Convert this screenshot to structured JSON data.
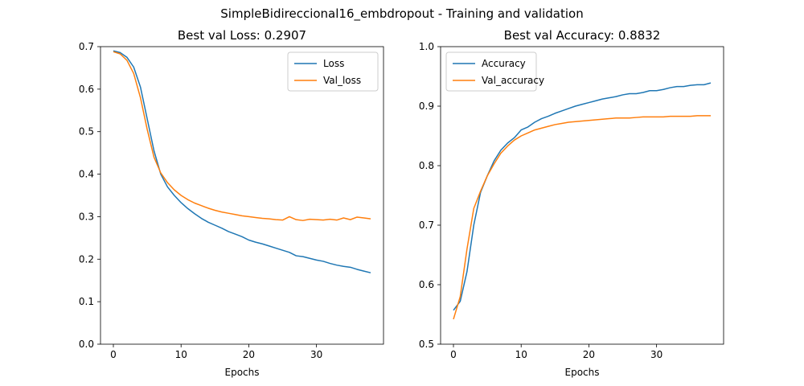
{
  "figure": {
    "suptitle": "SimpleBidireccional16_embdropout - Training and validation"
  },
  "chart_data": [
    {
      "type": "line",
      "title": "Best val Loss: 0.2907",
      "xlabel": "Epochs",
      "ylabel": "",
      "xlim": [
        -1.9,
        39.9
      ],
      "ylim": [
        0.0,
        0.7
      ],
      "xticks": [
        0,
        10,
        20,
        30
      ],
      "yticks": [
        0.0,
        0.1,
        0.2,
        0.3,
        0.4,
        0.5,
        0.6,
        0.7
      ],
      "ytick_decimals": 1,
      "grid": false,
      "legend_position": "upper-right",
      "x": [
        0,
        1,
        2,
        3,
        4,
        5,
        6,
        7,
        8,
        9,
        10,
        11,
        12,
        13,
        14,
        15,
        16,
        17,
        18,
        19,
        20,
        21,
        22,
        23,
        24,
        25,
        26,
        27,
        28,
        29,
        30,
        31,
        32,
        33,
        34,
        35,
        36,
        37,
        38
      ],
      "series": [
        {
          "name": "Loss",
          "color": "#1f77b4",
          "values": [
            0.69,
            0.686,
            0.675,
            0.652,
            0.605,
            0.53,
            0.455,
            0.4,
            0.37,
            0.35,
            0.333,
            0.319,
            0.307,
            0.296,
            0.287,
            0.28,
            0.273,
            0.265,
            0.259,
            0.253,
            0.245,
            0.24,
            0.236,
            0.231,
            0.226,
            0.221,
            0.216,
            0.208,
            0.206,
            0.202,
            0.198,
            0.195,
            0.19,
            0.186,
            0.183,
            0.181,
            0.176,
            0.172,
            0.168
          ]
        },
        {
          "name": "Val_loss",
          "color": "#ff7f0e",
          "values": [
            0.688,
            0.683,
            0.668,
            0.637,
            0.58,
            0.505,
            0.44,
            0.403,
            0.38,
            0.363,
            0.35,
            0.34,
            0.332,
            0.326,
            0.32,
            0.315,
            0.311,
            0.308,
            0.305,
            0.302,
            0.3,
            0.298,
            0.296,
            0.295,
            0.293,
            0.292,
            0.3,
            0.293,
            0.291,
            0.294,
            0.293,
            0.292,
            0.294,
            0.292,
            0.297,
            0.293,
            0.299,
            0.297,
            0.295
          ]
        }
      ]
    },
    {
      "type": "line",
      "title": "Best val Accuracy: 0.8832",
      "xlabel": "Epochs",
      "ylabel": "",
      "xlim": [
        -1.9,
        39.9
      ],
      "ylim": [
        0.5,
        1.0
      ],
      "xticks": [
        0,
        10,
        20,
        30
      ],
      "yticks": [
        0.5,
        0.6,
        0.7,
        0.8,
        0.9,
        1.0
      ],
      "ytick_decimals": 1,
      "grid": false,
      "legend_position": "upper-left",
      "x": [
        0,
        1,
        2,
        3,
        4,
        5,
        6,
        7,
        8,
        9,
        10,
        11,
        12,
        13,
        14,
        15,
        16,
        17,
        18,
        19,
        20,
        21,
        22,
        23,
        24,
        25,
        26,
        27,
        28,
        29,
        30,
        31,
        32,
        33,
        34,
        35,
        36,
        37,
        38
      ],
      "series": [
        {
          "name": "Accuracy",
          "color": "#1f77b4",
          "values": [
            0.557,
            0.572,
            0.622,
            0.7,
            0.755,
            0.783,
            0.808,
            0.826,
            0.838,
            0.847,
            0.86,
            0.865,
            0.873,
            0.879,
            0.883,
            0.888,
            0.892,
            0.896,
            0.9,
            0.903,
            0.906,
            0.909,
            0.912,
            0.914,
            0.916,
            0.919,
            0.921,
            0.921,
            0.923,
            0.926,
            0.926,
            0.928,
            0.931,
            0.933,
            0.933,
            0.935,
            0.936,
            0.936,
            0.939
          ]
        },
        {
          "name": "Val_accuracy",
          "color": "#ff7f0e",
          "values": [
            0.542,
            0.58,
            0.66,
            0.728,
            0.757,
            0.783,
            0.803,
            0.821,
            0.833,
            0.843,
            0.85,
            0.855,
            0.86,
            0.863,
            0.866,
            0.869,
            0.871,
            0.873,
            0.874,
            0.875,
            0.876,
            0.877,
            0.878,
            0.879,
            0.88,
            0.88,
            0.88,
            0.881,
            0.882,
            0.882,
            0.882,
            0.882,
            0.883,
            0.883,
            0.883,
            0.883,
            0.884,
            0.884,
            0.884
          ]
        }
      ]
    }
  ]
}
